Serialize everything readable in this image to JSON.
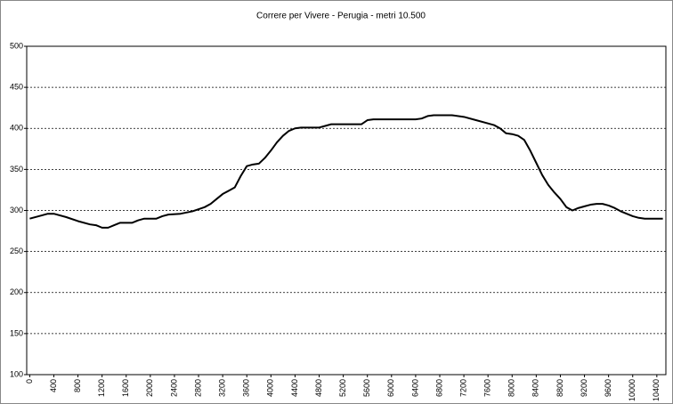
{
  "chart_data": {
    "type": "line",
    "title": "Correre per Vivere - Perugia - metri 10.500",
    "x": [
      0,
      200,
      300,
      400,
      600,
      800,
      1000,
      1100,
      1200,
      1300,
      1400,
      1500,
      1700,
      1800,
      1900,
      2100,
      2200,
      2300,
      2500,
      2700,
      2900,
      3000,
      3100,
      3200,
      3300,
      3400,
      3500,
      3600,
      3700,
      3800,
      3900,
      4000,
      4100,
      4200,
      4300,
      4400,
      4500,
      4800,
      4900,
      5000,
      5500,
      5600,
      5700,
      6400,
      6500,
      6600,
      6700,
      7000,
      7200,
      7400,
      7600,
      7700,
      7800,
      7900,
      8000,
      8100,
      8200,
      8300,
      8400,
      8500,
      8600,
      8700,
      8800,
      8900,
      9000,
      9100,
      9200,
      9300,
      9400,
      9500,
      9600,
      9700,
      9800,
      9900,
      10000,
      10100,
      10200,
      10500
    ],
    "series": [
      {
        "color": "#000000",
        "values": [
          290,
          294,
          296,
          296,
          292,
          287,
          283,
          282,
          279,
          279,
          282,
          285,
          285,
          288,
          290,
          290,
          293,
          295,
          296,
          299,
          304,
          308,
          314,
          320,
          324,
          328,
          342,
          354,
          356,
          357,
          364,
          373,
          383,
          391,
          397,
          400,
          401,
          401,
          403,
          405,
          405,
          410,
          411,
          411,
          412,
          415,
          416,
          416,
          414,
          410,
          406,
          404,
          400,
          394,
          393,
          391,
          386,
          373,
          358,
          343,
          331,
          322,
          314,
          304,
          300,
          303,
          305,
          307,
          308,
          308,
          306,
          303,
          299,
          296,
          293,
          291,
          290,
          290
        ]
      }
    ],
    "xlim": [
      -50,
      10550
    ],
    "ylim": [
      100,
      500
    ],
    "xticks": [
      0,
      400,
      800,
      1200,
      1600,
      2000,
      2400,
      2800,
      3200,
      3600,
      4000,
      4400,
      4800,
      5200,
      5600,
      6000,
      6400,
      6800,
      7200,
      7600,
      8000,
      8400,
      8800,
      9200,
      9600,
      10000,
      10400
    ],
    "yticks": [
      100,
      150,
      200,
      250,
      300,
      350,
      400,
      450,
      500
    ],
    "grid": true
  }
}
